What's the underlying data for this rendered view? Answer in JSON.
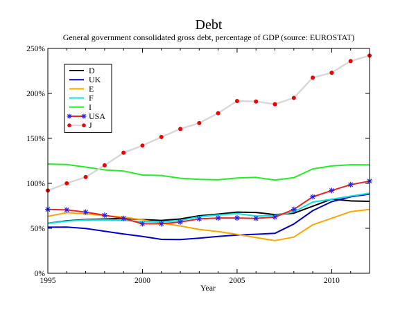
{
  "chart_data": {
    "type": "line",
    "title": "Debt",
    "subtitle": "General government consolidated gross debt, percentage of GDP (source: EUROSTAT)",
    "xlabel": "Year",
    "ylabel": "",
    "xlim": [
      1995,
      2012
    ],
    "ylim": [
      0,
      250
    ],
    "x_ticks": [
      1995,
      2000,
      2005,
      2010
    ],
    "x_tick_labels": [
      "1995",
      "2000",
      "2005",
      "2010"
    ],
    "y_ticks": [
      0,
      50,
      100,
      150,
      200,
      250
    ],
    "y_tick_labels": [
      "0%",
      "50%",
      "100%",
      "150%",
      "200%",
      "250%"
    ],
    "grid": false,
    "legend_position": "top-left",
    "x": [
      1995,
      1996,
      1997,
      1998,
      1999,
      2000,
      2001,
      2002,
      2003,
      2004,
      2005,
      2006,
      2007,
      2008,
      2009,
      2010,
      2011,
      2012
    ],
    "series": [
      {
        "name": "D",
        "color": "#000000",
        "marker": "none",
        "values": [
          55.6,
          58.4,
          59.7,
          60.3,
          60.9,
          59.7,
          58.8,
          60.4,
          63.9,
          65.8,
          68.0,
          67.6,
          65.2,
          66.8,
          74.5,
          82.5,
          80.5,
          80.0
        ]
      },
      {
        "name": "UK",
        "color": "#0000cc",
        "marker": "none",
        "values": [
          51.2,
          51.3,
          49.8,
          46.7,
          43.7,
          41.0,
          37.7,
          37.5,
          39.0,
          40.9,
          42.5,
          43.4,
          44.4,
          54.8,
          69.6,
          79.6,
          85.0,
          88.0
        ]
      },
      {
        "name": "E",
        "color": "#ffa500",
        "marker": "none",
        "values": [
          63.3,
          67.4,
          66.1,
          64.1,
          62.4,
          59.4,
          55.6,
          52.6,
          48.8,
          46.3,
          43.2,
          39.7,
          36.3,
          40.2,
          53.9,
          61.2,
          68.5,
          71.0
        ]
      },
      {
        "name": "F",
        "color": "#00e5e5",
        "marker": "none",
        "values": [
          55.5,
          58.0,
          59.2,
          59.4,
          58.9,
          57.3,
          56.9,
          58.8,
          62.9,
          64.9,
          66.4,
          63.7,
          64.2,
          68.2,
          79.2,
          82.3,
          85.8,
          89.0
        ]
      },
      {
        "name": "I",
        "color": "#22ee22",
        "marker": "none",
        "values": [
          121.5,
          121.0,
          118.1,
          114.9,
          113.7,
          109.2,
          108.8,
          105.7,
          104.4,
          103.9,
          105.9,
          106.6,
          103.6,
          106.3,
          116.1,
          119.3,
          120.7,
          120.5
        ]
      },
      {
        "name": "USA",
        "color": "#ee2222",
        "marker": "star",
        "marker_color": "#2222ee",
        "values": [
          71.0,
          70.5,
          68.0,
          64.5,
          61.0,
          55.0,
          55.0,
          57.0,
          60.5,
          61.5,
          61.5,
          61.0,
          62.5,
          71.0,
          85.0,
          92.0,
          98.5,
          102.5
        ]
      },
      {
        "name": "J",
        "color": "#d8d8d8",
        "marker": "dot",
        "marker_color": "#ee0000",
        "values": [
          92.0,
          100.0,
          107.0,
          120.0,
          134.0,
          142.0,
          151.5,
          160.5,
          167.0,
          178.0,
          191.5,
          191.0,
          188.0,
          195.0,
          217.5,
          223.0,
          236.0,
          242.0
        ]
      }
    ]
  }
}
